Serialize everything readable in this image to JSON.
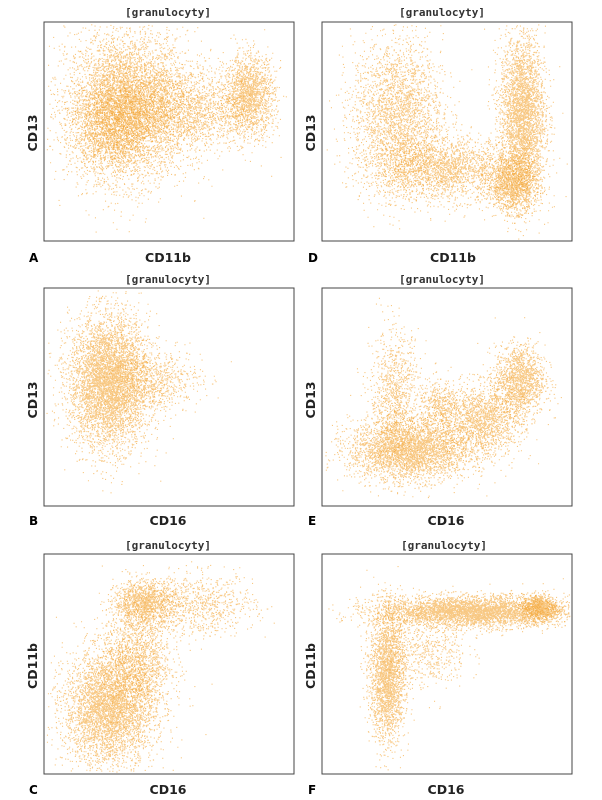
{
  "chart_data": [
    {
      "panel": "A",
      "type": "scatter",
      "title": "[granulocyty]",
      "xlabel": "CD11b",
      "ylabel": "CD13",
      "color": "#f39a1e",
      "series": [
        {
          "values": [
            {
              "x": 0.33,
              "y": 0.62,
              "sx": 0.12,
              "sy": 0.17,
              "n": 5000
            },
            {
              "x": 0.27,
              "y": 0.54,
              "sx": 0.08,
              "sy": 0.11,
              "n": 1800
            },
            {
              "x": 0.55,
              "y": 0.6,
              "sx": 0.14,
              "sy": 0.1,
              "n": 2000
            },
            {
              "x": 0.82,
              "y": 0.67,
              "sx": 0.05,
              "sy": 0.09,
              "n": 1600
            }
          ]
        }
      ]
    },
    {
      "panel": "D",
      "type": "scatter",
      "title": "[granulocyty]",
      "xlabel": "CD11b",
      "ylabel": "CD13",
      "color": "#f39a1e",
      "series": [
        {
          "values": [
            {
              "x": 0.3,
              "y": 0.58,
              "sx": 0.09,
              "sy": 0.17,
              "n": 2600
            },
            {
              "x": 0.48,
              "y": 0.33,
              "sx": 0.14,
              "sy": 0.07,
              "n": 2200
            },
            {
              "x": 0.8,
              "y": 0.57,
              "sx": 0.045,
              "sy": 0.19,
              "n": 3400
            },
            {
              "x": 0.76,
              "y": 0.26,
              "sx": 0.05,
              "sy": 0.06,
              "n": 1400
            }
          ]
        }
      ]
    },
    {
      "panel": "B",
      "type": "scatter",
      "title": "[granulocyty]",
      "xlabel": "CD16",
      "ylabel": "CD13",
      "color": "#f39a1e",
      "series": [
        {
          "values": [
            {
              "x": 0.26,
              "y": 0.57,
              "sx": 0.08,
              "sy": 0.15,
              "n": 6000
            },
            {
              "x": 0.45,
              "y": 0.58,
              "sx": 0.09,
              "sy": 0.07,
              "n": 600
            }
          ]
        }
      ]
    },
    {
      "panel": "E",
      "type": "scatter",
      "title": "[granulocyty]",
      "xlabel": "CD16",
      "ylabel": "CD13",
      "color": "#f39a1e",
      "series": [
        {
          "values": [
            {
              "x": 0.35,
              "y": 0.26,
              "sx": 0.12,
              "sy": 0.07,
              "n": 3400
            },
            {
              "x": 0.29,
              "y": 0.5,
              "sx": 0.05,
              "sy": 0.15,
              "n": 1000
            },
            {
              "x": 0.64,
              "y": 0.4,
              "sx": 0.08,
              "sy": 0.08,
              "n": 1600
            },
            {
              "x": 0.79,
              "y": 0.58,
              "sx": 0.05,
              "sy": 0.08,
              "n": 1400
            },
            {
              "x": 0.47,
              "y": 0.46,
              "sx": 0.04,
              "sy": 0.06,
              "n": 400
            }
          ]
        }
      ]
    },
    {
      "panel": "C",
      "type": "scatter",
      "title": "[granulocyty]",
      "xlabel": "CD16",
      "ylabel": "CD11b",
      "color": "#f39a1e",
      "series": [
        {
          "values": [
            {
              "x": 0.26,
              "y": 0.3,
              "sx": 0.09,
              "sy": 0.13,
              "n": 4200
            },
            {
              "x": 0.37,
              "y": 0.52,
              "sx": 0.07,
              "sy": 0.12,
              "n": 1400
            },
            {
              "x": 0.4,
              "y": 0.78,
              "sx": 0.06,
              "sy": 0.05,
              "n": 1300
            },
            {
              "x": 0.62,
              "y": 0.77,
              "sx": 0.11,
              "sy": 0.07,
              "n": 800
            }
          ]
        }
      ]
    },
    {
      "panel": "F",
      "type": "scatter",
      "title": "[granulocyty]",
      "xlabel": "CD16",
      "ylabel": "CD11b",
      "color": "#f39a1e",
      "series": [
        {
          "values": [
            {
              "x": 0.6,
              "y": 0.74,
              "sx": 0.19,
              "sy": 0.035,
              "n": 4200
            },
            {
              "x": 0.26,
              "y": 0.45,
              "sx": 0.035,
              "sy": 0.15,
              "n": 2400
            },
            {
              "x": 0.87,
              "y": 0.76,
              "sx": 0.035,
              "sy": 0.03,
              "n": 800
            },
            {
              "x": 0.42,
              "y": 0.55,
              "sx": 0.08,
              "sy": 0.08,
              "n": 500
            }
          ]
        }
      ]
    }
  ]
}
